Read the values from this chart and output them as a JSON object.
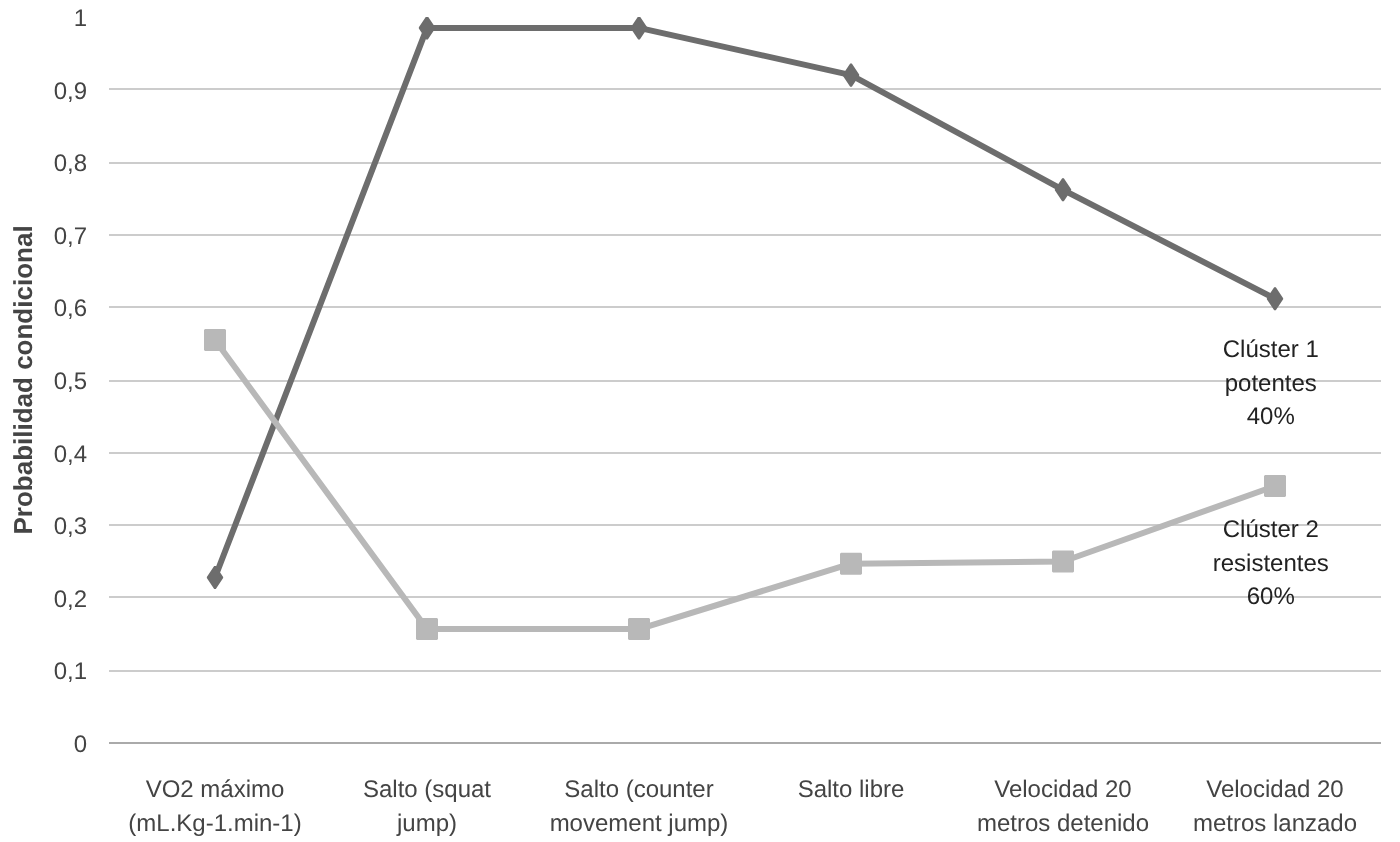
{
  "chart_data": {
    "type": "line",
    "ylabel": "Probabilidad condicional",
    "categories": [
      "VO2 máximo (mL.Kg-1.min-1)",
      "Salto (squat jump)",
      "Salto (counter movement jump)",
      "Salto libre",
      "Velocidad 20 metros detenido",
      "Velocidad 20 metros lanzado"
    ],
    "series": [
      {
        "name": "Clúster 1 potentes 40%",
        "color": "#6d6d6d",
        "marker": "diamond",
        "values": [
          0.228,
          0.985,
          0.985,
          0.92,
          0.762,
          0.612
        ]
      },
      {
        "name": "Clúster 2 resistentes 60%",
        "color": "#b8b8b8",
        "marker": "square",
        "values": [
          0.555,
          0.157,
          0.157,
          0.247,
          0.25,
          0.354
        ]
      }
    ],
    "ylim": [
      0,
      1
    ],
    "yticks": [
      0,
      {
        "value": 0.1,
        "label": "0,1"
      },
      {
        "value": 0.2,
        "label": "0,2"
      },
      {
        "value": 0.3,
        "label": "0,3"
      },
      {
        "value": 0.4,
        "label": "0,4"
      },
      {
        "value": 0.5,
        "label": "0,5"
      },
      {
        "value": 0.6,
        "label": "0,6"
      },
      {
        "value": 0.7,
        "label": "0,7"
      },
      {
        "value": 0.8,
        "label": "0,8"
      },
      {
        "value": 0.9,
        "label": "0,9"
      },
      1
    ],
    "grid": "y",
    "line_style": "solid"
  }
}
